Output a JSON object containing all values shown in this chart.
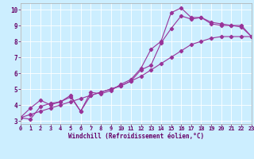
{
  "background_color": "#cceeff",
  "line_color": "#993399",
  "xlabel": "Windchill (Refroidissement éolien,°C)",
  "ylabel_ticks": [
    3,
    4,
    5,
    6,
    7,
    8,
    9,
    10
  ],
  "xlabel_ticks": [
    0,
    1,
    2,
    3,
    4,
    5,
    6,
    7,
    8,
    9,
    10,
    11,
    12,
    13,
    14,
    15,
    16,
    17,
    18,
    19,
    20,
    21,
    22,
    23
  ],
  "xlim": [
    0,
    23
  ],
  "ylim": [
    2.8,
    10.4
  ],
  "series1": [
    [
      0,
      3.2
    ],
    [
      1,
      3.8
    ],
    [
      2,
      4.3
    ],
    [
      3,
      4.0
    ],
    [
      4,
      4.2
    ],
    [
      5,
      4.6
    ],
    [
      6,
      3.6
    ],
    [
      7,
      4.8
    ],
    [
      8,
      4.7
    ],
    [
      9,
      4.9
    ],
    [
      10,
      5.3
    ],
    [
      11,
      5.6
    ],
    [
      12,
      6.3
    ],
    [
      13,
      7.5
    ],
    [
      14,
      8.0
    ],
    [
      15,
      9.8
    ],
    [
      16,
      10.1
    ],
    [
      17,
      9.5
    ],
    [
      18,
      9.5
    ],
    [
      19,
      9.2
    ],
    [
      20,
      9.1
    ],
    [
      21,
      9.0
    ],
    [
      22,
      8.9
    ],
    [
      23,
      8.3
    ]
  ],
  "series2": [
    [
      0,
      3.2
    ],
    [
      1,
      3.1
    ],
    [
      2,
      3.9
    ],
    [
      3,
      4.1
    ],
    [
      4,
      4.2
    ],
    [
      5,
      4.5
    ],
    [
      6,
      3.6
    ],
    [
      7,
      4.6
    ],
    [
      8,
      4.8
    ],
    [
      9,
      5.0
    ],
    [
      10,
      5.2
    ],
    [
      11,
      5.5
    ],
    [
      12,
      6.2
    ],
    [
      13,
      6.5
    ],
    [
      14,
      7.9
    ],
    [
      15,
      8.8
    ],
    [
      16,
      9.6
    ],
    [
      17,
      9.4
    ],
    [
      18,
      9.5
    ],
    [
      19,
      9.1
    ],
    [
      20,
      9.0
    ],
    [
      21,
      9.0
    ],
    [
      22,
      9.0
    ],
    [
      23,
      8.3
    ]
  ],
  "series3": [
    [
      0,
      3.2
    ],
    [
      1,
      3.4
    ],
    [
      2,
      3.6
    ],
    [
      3,
      3.8
    ],
    [
      4,
      4.0
    ],
    [
      5,
      4.2
    ],
    [
      6,
      4.4
    ],
    [
      7,
      4.6
    ],
    [
      8,
      4.8
    ],
    [
      9,
      5.0
    ],
    [
      10,
      5.2
    ],
    [
      11,
      5.5
    ],
    [
      12,
      5.8
    ],
    [
      13,
      6.2
    ],
    [
      14,
      6.6
    ],
    [
      15,
      7.0
    ],
    [
      16,
      7.4
    ],
    [
      17,
      7.8
    ],
    [
      18,
      8.0
    ],
    [
      19,
      8.2
    ],
    [
      20,
      8.3
    ],
    [
      21,
      8.3
    ],
    [
      22,
      8.3
    ],
    [
      23,
      8.3
    ]
  ],
  "tick_color": "#660066",
  "label_color": "#660066",
  "grid_color": "#ffffff",
  "tick_fontsize": 5.0,
  "xlabel_fontsize": 5.5
}
